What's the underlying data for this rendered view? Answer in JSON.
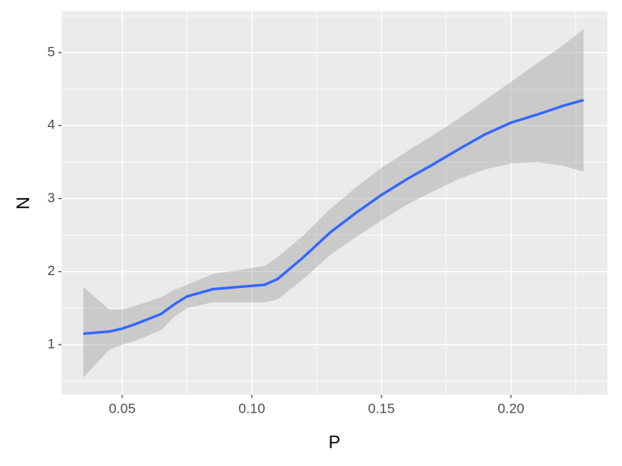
{
  "chart_data": {
    "type": "smooth",
    "x_label": "P",
    "y_label": "N",
    "x": [
      0.035,
      0.045,
      0.05,
      0.055,
      0.065,
      0.07,
      0.075,
      0.085,
      0.095,
      0.105,
      0.11,
      0.12,
      0.13,
      0.14,
      0.15,
      0.16,
      0.17,
      0.18,
      0.19,
      0.2,
      0.21,
      0.22,
      0.228
    ],
    "values": [
      1.15,
      1.18,
      1.22,
      1.28,
      1.42,
      1.55,
      1.66,
      1.76,
      1.79,
      1.82,
      1.9,
      2.2,
      2.53,
      2.8,
      3.05,
      3.27,
      3.47,
      3.68,
      3.88,
      4.04,
      4.15,
      4.27,
      4.35
    ],
    "upper": [
      1.79,
      1.48,
      1.48,
      1.53,
      1.65,
      1.75,
      1.82,
      1.97,
      2.02,
      2.08,
      2.2,
      2.5,
      2.85,
      3.15,
      3.42,
      3.65,
      3.87,
      4.1,
      4.35,
      4.6,
      4.85,
      5.1,
      5.32
    ],
    "lower": [
      0.55,
      0.93,
      1.0,
      1.05,
      1.2,
      1.38,
      1.5,
      1.58,
      1.58,
      1.58,
      1.62,
      1.9,
      2.22,
      2.47,
      2.7,
      2.92,
      3.1,
      3.27,
      3.4,
      3.48,
      3.5,
      3.45,
      3.37
    ],
    "color": "#3366ff",
    "band_color": "#999999",
    "xlim": [
      0.0266,
      0.2372
    ],
    "ylim": [
      0.313,
      5.565
    ],
    "xticks": [
      0.05,
      {
        "value": 0.1,
        "label": "0.10"
      },
      0.15,
      {
        "value": 0.2,
        "label": "0.20"
      }
    ],
    "yticks": [
      1,
      2,
      3,
      4,
      5
    ],
    "grid": true
  }
}
